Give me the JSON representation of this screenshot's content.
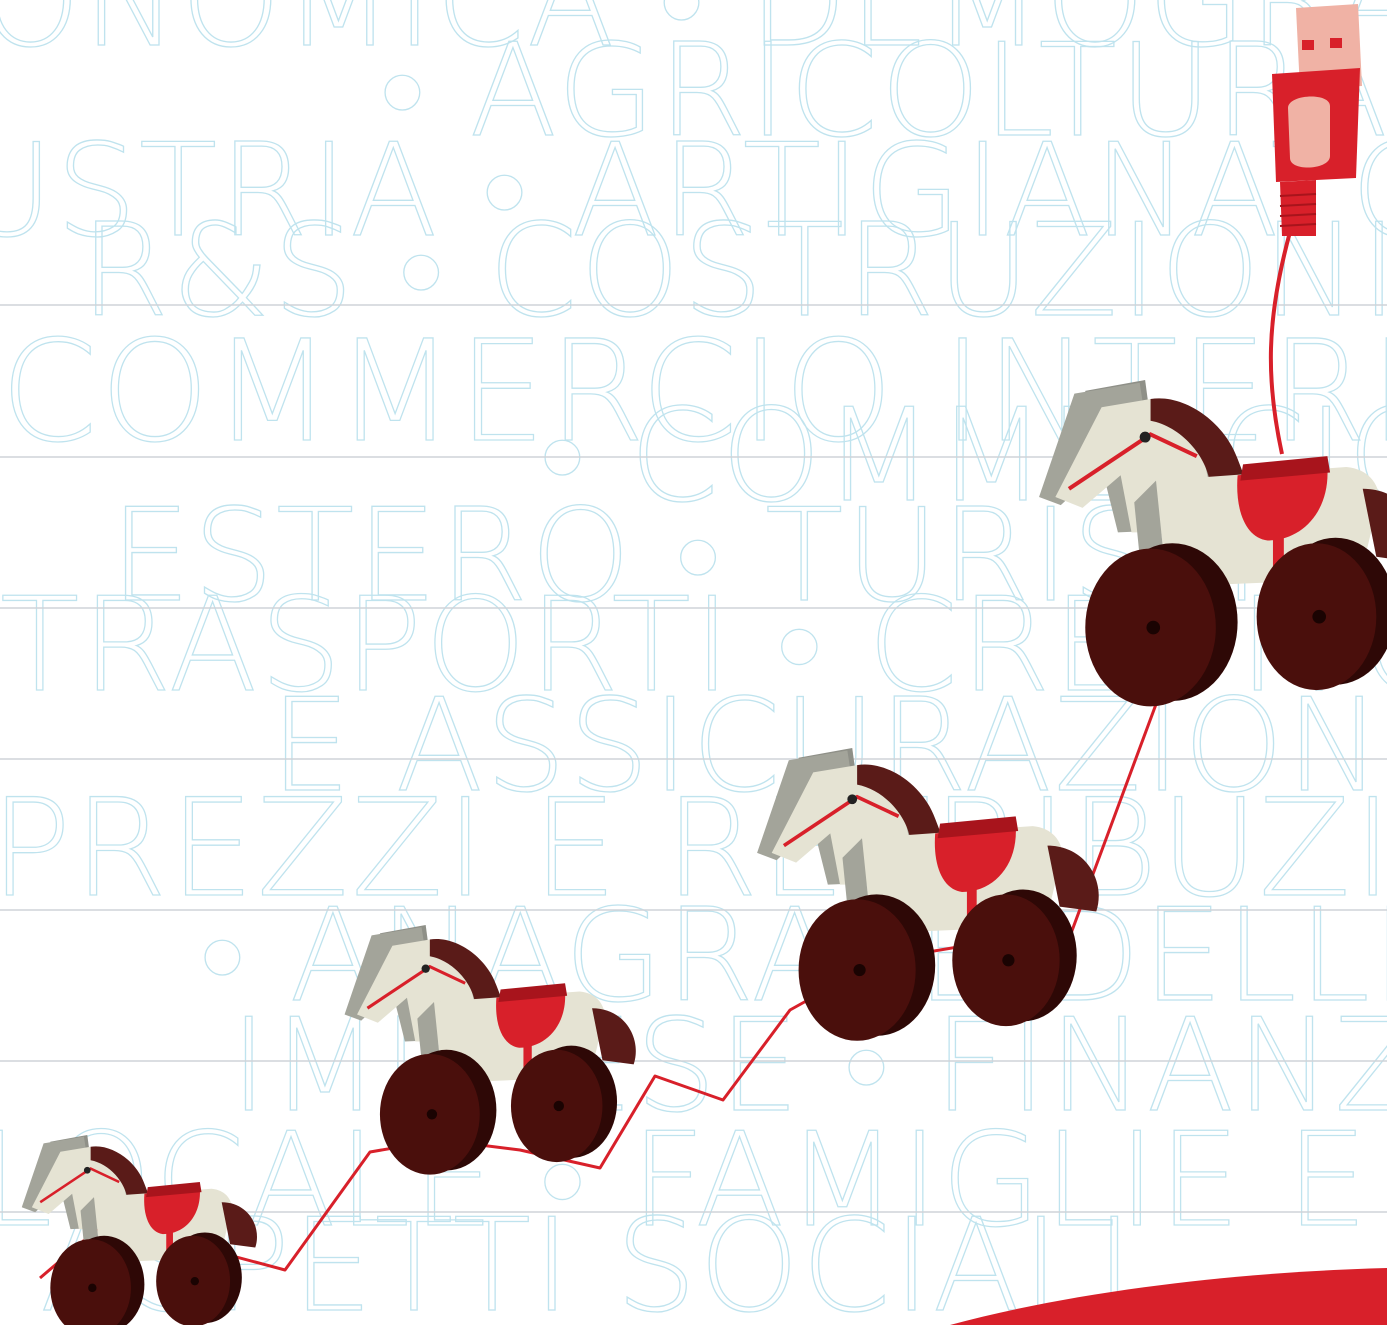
{
  "background_words": [
    {
      "id": "economica",
      "text": "ONOMICA • DEMOGRAFIA"
    },
    {
      "id": "agricoltura",
      "text": "• AGRICOLTURA"
    },
    {
      "id": "industria",
      "text": "USTRIA • ARTIGIANATO"
    },
    {
      "id": "rs-costruzioni",
      "text": "R&S • COSTRUZIONI"
    },
    {
      "id": "commercio-interno",
      "text": "COMMERCIO INTERNO"
    },
    {
      "id": "commercio",
      "text": "• COMMERCIO"
    },
    {
      "id": "estero-turismo",
      "text": "ESTERO • TURISMO"
    },
    {
      "id": "trasporti-credito",
      "text": "TRASPORTI • CREDITO"
    },
    {
      "id": "e-assicurazioni",
      "text": "E ASSICURAZIONI"
    },
    {
      "id": "prezzi-retribuzioni",
      "text": "PREZZI E RETRIBUZIONI"
    },
    {
      "id": "anagrafe-dei",
      "text": "• ANAGRAFE DELLE"
    },
    {
      "id": "imprese-finanza",
      "text": "IMPRESE • FINANZA"
    },
    {
      "id": "locale-famiglie",
      "text": "LOCALE • FAMIGLIE E"
    },
    {
      "id": "aspetti-sociali",
      "text": "ASPETTI SOCIALI"
    }
  ],
  "colors": {
    "accent_red": "#d8202a",
    "wheel_dark": "#4a0f0c",
    "horse_body": "#e4e2d2",
    "horse_mane": "#5a1b18",
    "horse_grey": "#9fa096",
    "usb_pink": "#f0b2a5",
    "text_outline": "#bfe3ee",
    "ruled_line": "#cfd3d8"
  },
  "icons": [
    "wooden-horse-icon",
    "usb-plug-icon",
    "growth-line-icon"
  ]
}
